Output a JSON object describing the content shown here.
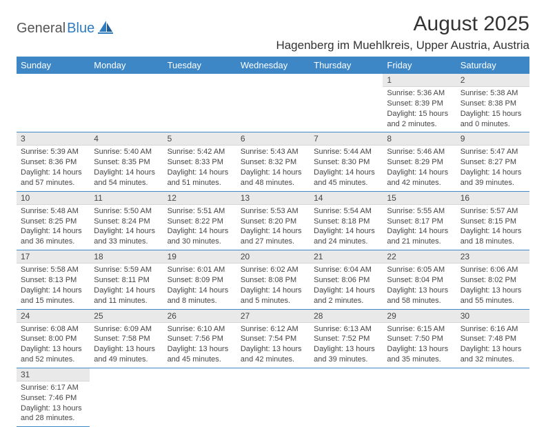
{
  "logo": {
    "part1": "General",
    "part2": "Blue"
  },
  "title": "August 2025",
  "location": "Hagenberg im Muehlkreis, Upper Austria, Austria",
  "colors": {
    "header_bg": "#3d87c7",
    "header_text": "#ffffff",
    "daynum_bg": "#e9e9e9",
    "border": "#3d87c7",
    "text": "#444444",
    "logo_accent": "#2f7bbf"
  },
  "weekdays": [
    "Sunday",
    "Monday",
    "Tuesday",
    "Wednesday",
    "Thursday",
    "Friday",
    "Saturday"
  ],
  "weeks": [
    [
      null,
      null,
      null,
      null,
      null,
      {
        "n": "1",
        "sr": "Sunrise: 5:36 AM",
        "ss": "Sunset: 8:39 PM",
        "dl1": "Daylight: 15 hours",
        "dl2": "and 2 minutes."
      },
      {
        "n": "2",
        "sr": "Sunrise: 5:38 AM",
        "ss": "Sunset: 8:38 PM",
        "dl1": "Daylight: 15 hours",
        "dl2": "and 0 minutes."
      }
    ],
    [
      {
        "n": "3",
        "sr": "Sunrise: 5:39 AM",
        "ss": "Sunset: 8:36 PM",
        "dl1": "Daylight: 14 hours",
        "dl2": "and 57 minutes."
      },
      {
        "n": "4",
        "sr": "Sunrise: 5:40 AM",
        "ss": "Sunset: 8:35 PM",
        "dl1": "Daylight: 14 hours",
        "dl2": "and 54 minutes."
      },
      {
        "n": "5",
        "sr": "Sunrise: 5:42 AM",
        "ss": "Sunset: 8:33 PM",
        "dl1": "Daylight: 14 hours",
        "dl2": "and 51 minutes."
      },
      {
        "n": "6",
        "sr": "Sunrise: 5:43 AM",
        "ss": "Sunset: 8:32 PM",
        "dl1": "Daylight: 14 hours",
        "dl2": "and 48 minutes."
      },
      {
        "n": "7",
        "sr": "Sunrise: 5:44 AM",
        "ss": "Sunset: 8:30 PM",
        "dl1": "Daylight: 14 hours",
        "dl2": "and 45 minutes."
      },
      {
        "n": "8",
        "sr": "Sunrise: 5:46 AM",
        "ss": "Sunset: 8:29 PM",
        "dl1": "Daylight: 14 hours",
        "dl2": "and 42 minutes."
      },
      {
        "n": "9",
        "sr": "Sunrise: 5:47 AM",
        "ss": "Sunset: 8:27 PM",
        "dl1": "Daylight: 14 hours",
        "dl2": "and 39 minutes."
      }
    ],
    [
      {
        "n": "10",
        "sr": "Sunrise: 5:48 AM",
        "ss": "Sunset: 8:25 PM",
        "dl1": "Daylight: 14 hours",
        "dl2": "and 36 minutes."
      },
      {
        "n": "11",
        "sr": "Sunrise: 5:50 AM",
        "ss": "Sunset: 8:24 PM",
        "dl1": "Daylight: 14 hours",
        "dl2": "and 33 minutes."
      },
      {
        "n": "12",
        "sr": "Sunrise: 5:51 AM",
        "ss": "Sunset: 8:22 PM",
        "dl1": "Daylight: 14 hours",
        "dl2": "and 30 minutes."
      },
      {
        "n": "13",
        "sr": "Sunrise: 5:53 AM",
        "ss": "Sunset: 8:20 PM",
        "dl1": "Daylight: 14 hours",
        "dl2": "and 27 minutes."
      },
      {
        "n": "14",
        "sr": "Sunrise: 5:54 AM",
        "ss": "Sunset: 8:18 PM",
        "dl1": "Daylight: 14 hours",
        "dl2": "and 24 minutes."
      },
      {
        "n": "15",
        "sr": "Sunrise: 5:55 AM",
        "ss": "Sunset: 8:17 PM",
        "dl1": "Daylight: 14 hours",
        "dl2": "and 21 minutes."
      },
      {
        "n": "16",
        "sr": "Sunrise: 5:57 AM",
        "ss": "Sunset: 8:15 PM",
        "dl1": "Daylight: 14 hours",
        "dl2": "and 18 minutes."
      }
    ],
    [
      {
        "n": "17",
        "sr": "Sunrise: 5:58 AM",
        "ss": "Sunset: 8:13 PM",
        "dl1": "Daylight: 14 hours",
        "dl2": "and 15 minutes."
      },
      {
        "n": "18",
        "sr": "Sunrise: 5:59 AM",
        "ss": "Sunset: 8:11 PM",
        "dl1": "Daylight: 14 hours",
        "dl2": "and 11 minutes."
      },
      {
        "n": "19",
        "sr": "Sunrise: 6:01 AM",
        "ss": "Sunset: 8:09 PM",
        "dl1": "Daylight: 14 hours",
        "dl2": "and 8 minutes."
      },
      {
        "n": "20",
        "sr": "Sunrise: 6:02 AM",
        "ss": "Sunset: 8:08 PM",
        "dl1": "Daylight: 14 hours",
        "dl2": "and 5 minutes."
      },
      {
        "n": "21",
        "sr": "Sunrise: 6:04 AM",
        "ss": "Sunset: 8:06 PM",
        "dl1": "Daylight: 14 hours",
        "dl2": "and 2 minutes."
      },
      {
        "n": "22",
        "sr": "Sunrise: 6:05 AM",
        "ss": "Sunset: 8:04 PM",
        "dl1": "Daylight: 13 hours",
        "dl2": "and 58 minutes."
      },
      {
        "n": "23",
        "sr": "Sunrise: 6:06 AM",
        "ss": "Sunset: 8:02 PM",
        "dl1": "Daylight: 13 hours",
        "dl2": "and 55 minutes."
      }
    ],
    [
      {
        "n": "24",
        "sr": "Sunrise: 6:08 AM",
        "ss": "Sunset: 8:00 PM",
        "dl1": "Daylight: 13 hours",
        "dl2": "and 52 minutes."
      },
      {
        "n": "25",
        "sr": "Sunrise: 6:09 AM",
        "ss": "Sunset: 7:58 PM",
        "dl1": "Daylight: 13 hours",
        "dl2": "and 49 minutes."
      },
      {
        "n": "26",
        "sr": "Sunrise: 6:10 AM",
        "ss": "Sunset: 7:56 PM",
        "dl1": "Daylight: 13 hours",
        "dl2": "and 45 minutes."
      },
      {
        "n": "27",
        "sr": "Sunrise: 6:12 AM",
        "ss": "Sunset: 7:54 PM",
        "dl1": "Daylight: 13 hours",
        "dl2": "and 42 minutes."
      },
      {
        "n": "28",
        "sr": "Sunrise: 6:13 AM",
        "ss": "Sunset: 7:52 PM",
        "dl1": "Daylight: 13 hours",
        "dl2": "and 39 minutes."
      },
      {
        "n": "29",
        "sr": "Sunrise: 6:15 AM",
        "ss": "Sunset: 7:50 PM",
        "dl1": "Daylight: 13 hours",
        "dl2": "and 35 minutes."
      },
      {
        "n": "30",
        "sr": "Sunrise: 6:16 AM",
        "ss": "Sunset: 7:48 PM",
        "dl1": "Daylight: 13 hours",
        "dl2": "and 32 minutes."
      }
    ],
    [
      {
        "n": "31",
        "sr": "Sunrise: 6:17 AM",
        "ss": "Sunset: 7:46 PM",
        "dl1": "Daylight: 13 hours",
        "dl2": "and 28 minutes."
      },
      null,
      null,
      null,
      null,
      null,
      null
    ]
  ]
}
